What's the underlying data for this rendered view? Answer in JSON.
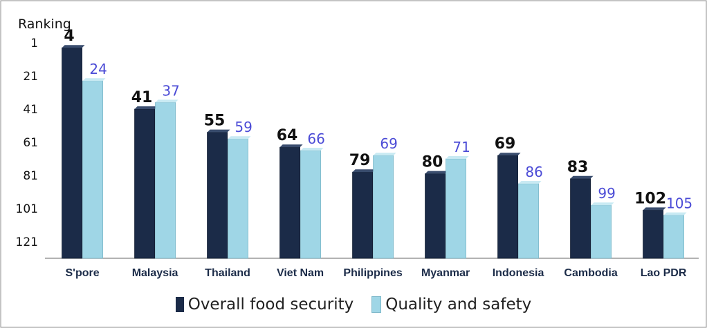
{
  "chart_data": {
    "type": "bar",
    "ylabel": "Ranking",
    "y_inverted": true,
    "ylim": [
      1,
      131
    ],
    "yticks": [
      1,
      21,
      41,
      61,
      81,
      101,
      121
    ],
    "categories": [
      "S'pore",
      "Malaysia",
      "Thailand",
      "Viet Nam",
      "Philippines",
      "Myanmar",
      "Indonesia",
      "Cambodia",
      "Lao PDR"
    ],
    "series": [
      {
        "name": "Overall food security",
        "values": [
          4,
          41,
          55,
          64,
          79,
          80,
          69,
          83,
          102
        ],
        "color": "#1b2b48",
        "label_color": "#111111"
      },
      {
        "name": "Quality and safety",
        "values": [
          24,
          37,
          59,
          66,
          69,
          71,
          86,
          99,
          105
        ],
        "color": "#9fd6e6",
        "label_color": "#4b4bd6"
      }
    ],
    "grid": false,
    "legend_position": "bottom"
  }
}
